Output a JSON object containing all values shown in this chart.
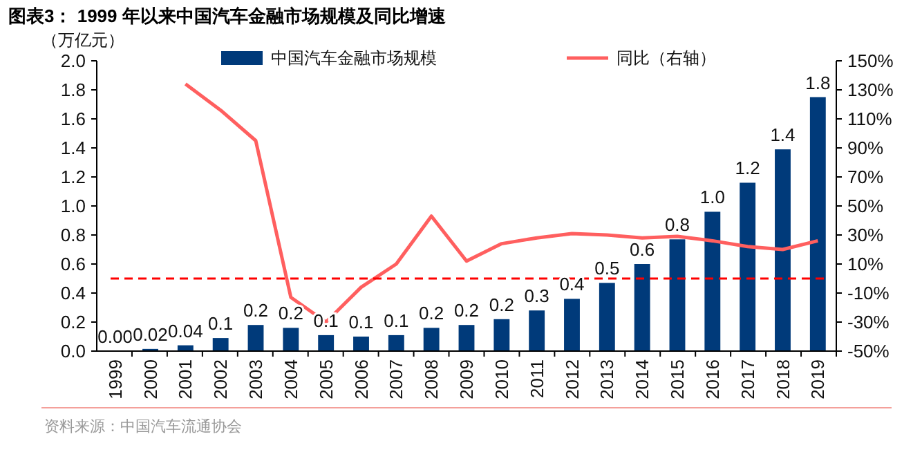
{
  "chart_data": {
    "type": "bar",
    "title": "图表3：  1999 年以来中国汽车金融市场规模及同比增速",
    "ylabel": "（万亿元）",
    "categories": [
      "1999",
      "2000",
      "2001",
      "2002",
      "2003",
      "2004",
      "2005",
      "2006",
      "2007",
      "2008",
      "2009",
      "2010",
      "2011",
      "2012",
      "2013",
      "2014",
      "2015",
      "2016",
      "2017",
      "2018",
      "2019"
    ],
    "series": [
      {
        "name": "中国汽车金融市场规模",
        "color": "#003a7a",
        "values": [
          0.0,
          0.015,
          0.04,
          0.09,
          0.18,
          0.16,
          0.11,
          0.1,
          0.11,
          0.16,
          0.18,
          0.22,
          0.28,
          0.36,
          0.47,
          0.6,
          0.77,
          0.96,
          1.16,
          1.39,
          1.75
        ],
        "value_labels": [
          "0.00",
          "0.02",
          "0.04",
          "0.1",
          "0.2",
          "0.2",
          "0.1",
          "0.1",
          "0.1",
          "0.2",
          "0.2",
          "0.2",
          "0.3",
          "0.4",
          "0.5",
          "0.6",
          "0.8",
          "1.0",
          "1.2",
          "1.4",
          "1.8"
        ]
      },
      {
        "name": "同比（右轴）",
        "type": "line",
        "axis": "y2",
        "color": "#ff5f5f",
        "values": [
          null,
          null,
          134,
          116,
          95,
          -13,
          -30,
          -6,
          10,
          43,
          12,
          24,
          28,
          31,
          30,
          28,
          29,
          26,
          22,
          20,
          26
        ]
      }
    ],
    "ylim": [
      0,
      2.0
    ],
    "yticks": [
      {
        "value": 0,
        "label": "0.0"
      },
      {
        "value": 0.2,
        "label": "0.2"
      },
      {
        "value": 0.4,
        "label": "0.4"
      },
      {
        "value": 0.6,
        "label": "0.6"
      },
      {
        "value": 0.8,
        "label": "0.8"
      },
      {
        "value": 1.0,
        "label": "1.0"
      },
      {
        "value": 1.2,
        "label": "1.2"
      },
      {
        "value": 1.4,
        "label": "1.4"
      },
      {
        "value": 1.6,
        "label": "1.6"
      },
      {
        "value": 1.8,
        "label": "1.8"
      },
      {
        "value": 2.0,
        "label": "2.0"
      }
    ],
    "y2lim": [
      -50,
      150
    ],
    "y2ticks": [
      {
        "value": -50,
        "label": "-50%"
      },
      {
        "value": -30,
        "label": "-30%"
      },
      {
        "value": -10,
        "label": "-10%"
      },
      {
        "value": 10,
        "label": "10%"
      },
      {
        "value": 30,
        "label": "30%"
      },
      {
        "value": 50,
        "label": "50%"
      },
      {
        "value": 70,
        "label": "70%"
      },
      {
        "value": 90,
        "label": "90%"
      },
      {
        "value": 110,
        "label": "110%"
      },
      {
        "value": 130,
        "label": "130%"
      },
      {
        "value": 150,
        "label": "150%"
      }
    ],
    "ref_lines": [
      {
        "axis": "y2",
        "value": 0,
        "color": "#ff0000",
        "line_style": "dashed"
      }
    ],
    "legend": "top",
    "grid": false,
    "marker": "none",
    "line_style": "solid",
    "annotations": [
      "资料来源：中国汽车流通协会"
    ]
  }
}
